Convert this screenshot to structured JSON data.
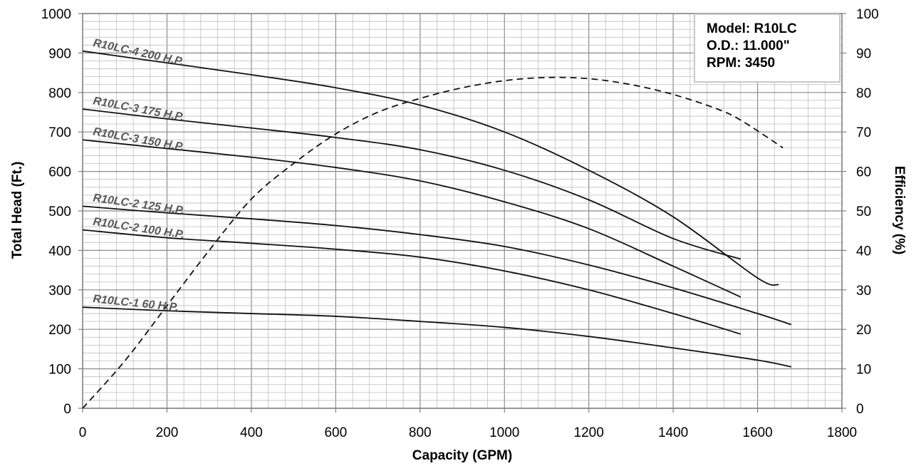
{
  "chart_data": {
    "type": "line",
    "xlabel": "Capacity (GPM)",
    "ylabel": "Total Head (Ft.)",
    "y2label": "Efficiency (%)",
    "xlim": [
      0,
      1800
    ],
    "ylim": [
      0,
      1000
    ],
    "y2lim": [
      0,
      100
    ],
    "grid": true,
    "x_ticks": [
      "0",
      "200",
      "400",
      "600",
      "800",
      "1000",
      "1200",
      "1400",
      "1600",
      "1800"
    ],
    "y_ticks": [
      "0",
      "100",
      "200",
      "300",
      "400",
      "500",
      "600",
      "700",
      "800",
      "900",
      "1000"
    ],
    "y2_ticks": [
      "0",
      "10",
      "20",
      "30",
      "40",
      "50",
      "60",
      "70",
      "80",
      "90",
      "100"
    ],
    "info_box": [
      "Model: R10LC",
      "O.D.: 11.000\"",
      "RPM: 3450"
    ],
    "series": [
      {
        "name": "R10LC-4 200 H.P.",
        "axis": "left",
        "style": "solid",
        "x": [
          0,
          200,
          400,
          600,
          800,
          1000,
          1200,
          1400,
          1600,
          1650
        ],
        "y": [
          905,
          875,
          845,
          812,
          768,
          700,
          603,
          485,
          330,
          313
        ]
      },
      {
        "name": "R10LC-3 175 H.P.",
        "axis": "left",
        "style": "solid",
        "x": [
          0,
          200,
          400,
          600,
          800,
          1000,
          1200,
          1400,
          1560
        ],
        "y": [
          758,
          733,
          710,
          686,
          655,
          603,
          528,
          430,
          378
        ]
      },
      {
        "name": "R10LC-3 150 H.P.",
        "axis": "left",
        "style": "solid",
        "x": [
          0,
          200,
          400,
          600,
          800,
          1000,
          1200,
          1400,
          1560
        ],
        "y": [
          680,
          658,
          636,
          610,
          576,
          523,
          455,
          360,
          282
        ]
      },
      {
        "name": "R10LC-2 125 H.P.",
        "axis": "left",
        "style": "solid",
        "x": [
          0,
          200,
          400,
          600,
          800,
          1000,
          1200,
          1400,
          1600,
          1680
        ],
        "y": [
          512,
          495,
          480,
          463,
          440,
          410,
          363,
          305,
          240,
          212
        ]
      },
      {
        "name": "R10LC-2 100 H.P.",
        "axis": "left",
        "style": "solid",
        "x": [
          0,
          200,
          400,
          600,
          800,
          1000,
          1200,
          1400,
          1560
        ],
        "y": [
          452,
          432,
          418,
          403,
          383,
          348,
          300,
          240,
          188
        ]
      },
      {
        "name": "R10LC-1 60 H.P.",
        "axis": "left",
        "style": "solid",
        "x": [
          0,
          200,
          400,
          600,
          800,
          1000,
          1200,
          1400,
          1600,
          1680
        ],
        "y": [
          256,
          247,
          240,
          233,
          220,
          205,
          182,
          153,
          122,
          105
        ]
      },
      {
        "name": "",
        "axis": "right",
        "style": "dashed",
        "x": [
          0,
          100,
          200,
          300,
          400,
          500,
          600,
          700,
          800,
          900,
          1000,
          1100,
          1200,
          1300,
          1400,
          1500,
          1560,
          1660
        ],
        "y": [
          0,
          12,
          26,
          40,
          53,
          62,
          69.5,
          75,
          78.5,
          81.2,
          83,
          83.8,
          83.5,
          82,
          79.5,
          76,
          73,
          66
        ]
      }
    ]
  }
}
